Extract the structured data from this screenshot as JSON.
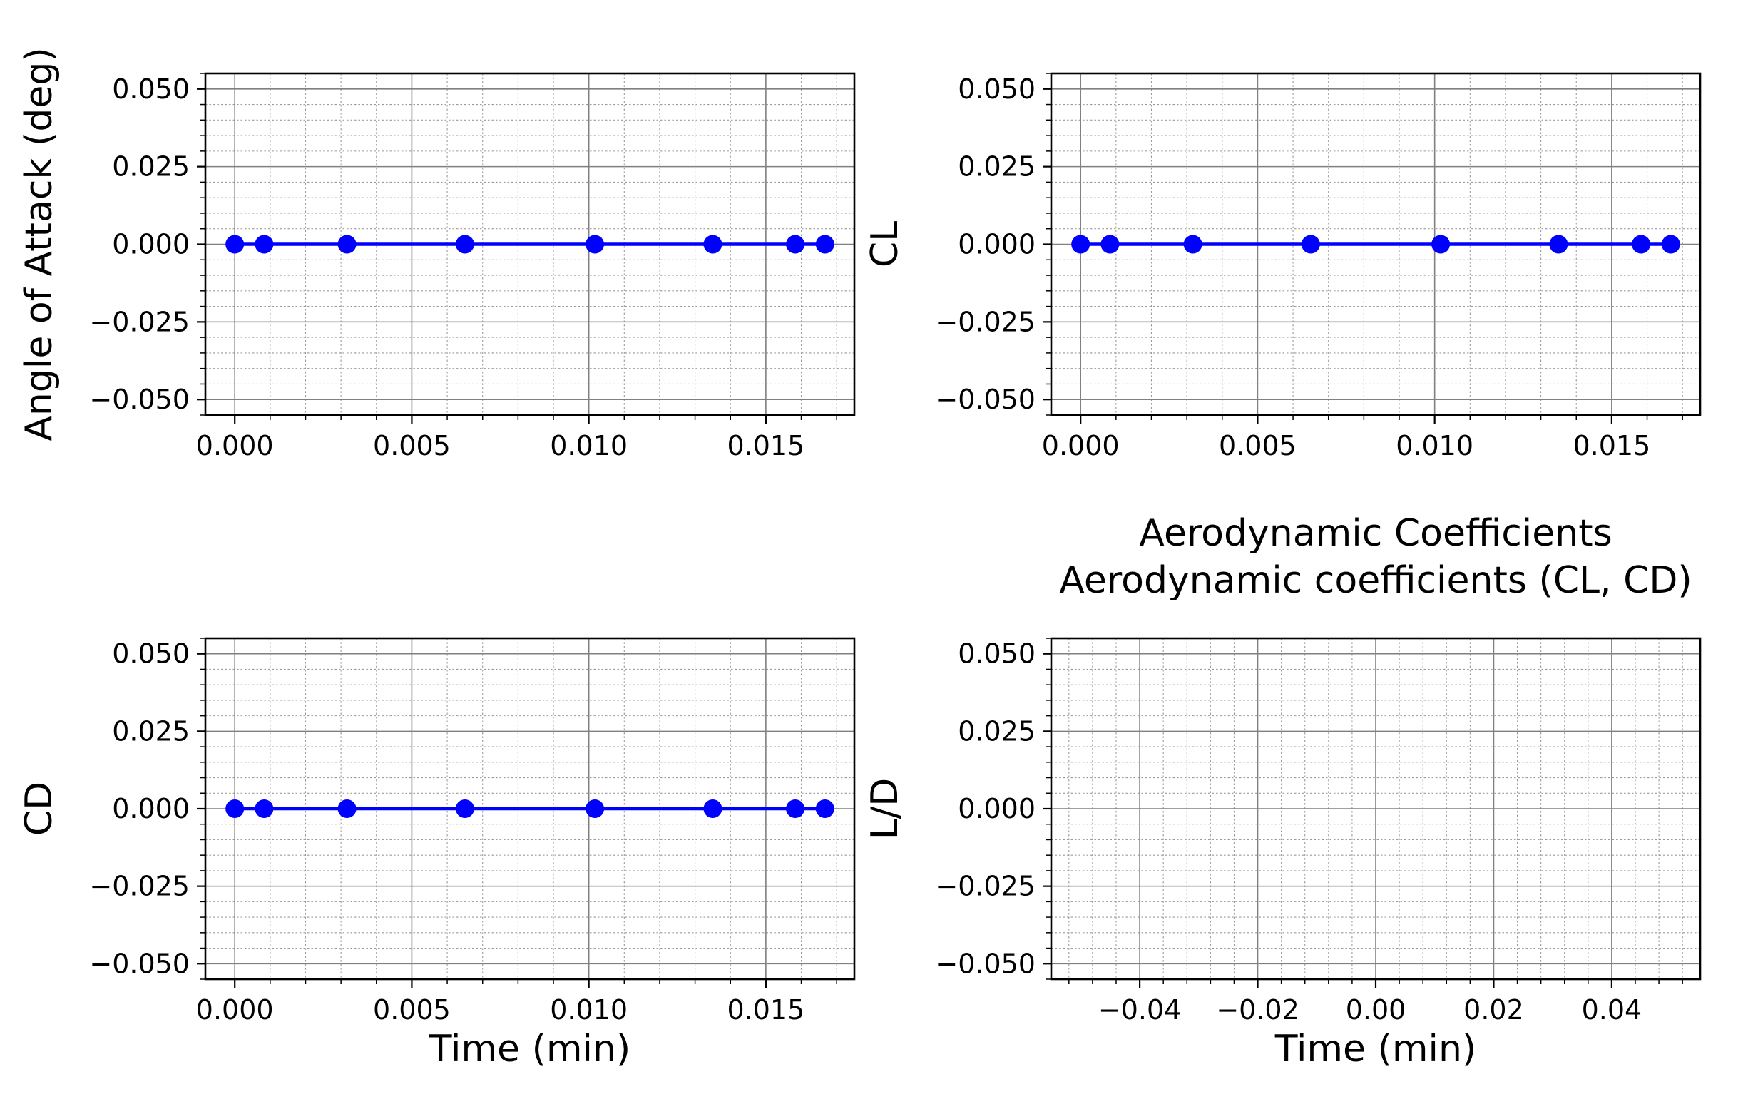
{
  "chart_data": [
    {
      "type": "line",
      "title": "",
      "xlabel": "",
      "ylabel": "Angle of Attack (deg)",
      "x": [
        0.0,
        0.00083,
        0.00317,
        0.0065,
        0.01017,
        0.0135,
        0.01583,
        0.01667
      ],
      "series": [
        {
          "values": [
            0,
            0,
            0,
            0,
            0,
            0,
            0,
            0
          ],
          "color": "#0000ff",
          "marker": "circle"
        }
      ],
      "xlim": [
        -0.00083,
        0.0175
      ],
      "ylim": [
        -0.055,
        0.055
      ],
      "xticks": [
        "0.000",
        "0.005",
        "0.010",
        "0.015"
      ],
      "yticks": [
        "0.050",
        "0.025",
        "0.000",
        "−0.025",
        "−0.050"
      ],
      "grid": true,
      "minor_grid": true
    },
    {
      "type": "line",
      "title": "",
      "xlabel": "",
      "ylabel": "CL",
      "x": [
        0.0,
        0.00083,
        0.00317,
        0.0065,
        0.01017,
        0.0135,
        0.01583,
        0.01667
      ],
      "series": [
        {
          "values": [
            0,
            0,
            0,
            0,
            0,
            0,
            0,
            0
          ],
          "color": "#0000ff",
          "marker": "circle"
        }
      ],
      "xlim": [
        -0.00083,
        0.0175
      ],
      "ylim": [
        -0.055,
        0.055
      ],
      "xticks": [
        "0.000",
        "0.005",
        "0.010",
        "0.015"
      ],
      "yticks": [
        "0.050",
        "0.025",
        "0.000",
        "−0.025",
        "−0.050"
      ],
      "grid": true,
      "minor_grid": true
    },
    {
      "type": "line",
      "title": "",
      "xlabel": "Time (min)",
      "ylabel": "CD",
      "x": [
        0.0,
        0.00083,
        0.00317,
        0.0065,
        0.01017,
        0.0135,
        0.01583,
        0.01667
      ],
      "series": [
        {
          "values": [
            0,
            0,
            0,
            0,
            0,
            0,
            0,
            0
          ],
          "color": "#0000ff",
          "marker": "circle"
        }
      ],
      "xlim": [
        -0.00083,
        0.0175
      ],
      "ylim": [
        -0.055,
        0.055
      ],
      "xticks": [
        "0.000",
        "0.005",
        "0.010",
        "0.015"
      ],
      "yticks": [
        "0.050",
        "0.025",
        "0.000",
        "−0.025",
        "−0.050"
      ],
      "grid": true,
      "minor_grid": true
    },
    {
      "type": "line",
      "title": "Aerodynamic Coefficients\nAerodynamic coefficients (CL, CD)",
      "xlabel": "Time (min)",
      "ylabel": "L/D",
      "x": [],
      "series": [],
      "xlim": [
        -0.055,
        0.055
      ],
      "ylim": [
        -0.055,
        0.055
      ],
      "xticks": [
        "−0.04",
        "−0.02",
        "0.00",
        "0.02",
        "0.04"
      ],
      "yticks": [
        "0.050",
        "0.025",
        "0.000",
        "−0.025",
        "−0.050"
      ],
      "grid": true,
      "minor_grid": true
    }
  ]
}
